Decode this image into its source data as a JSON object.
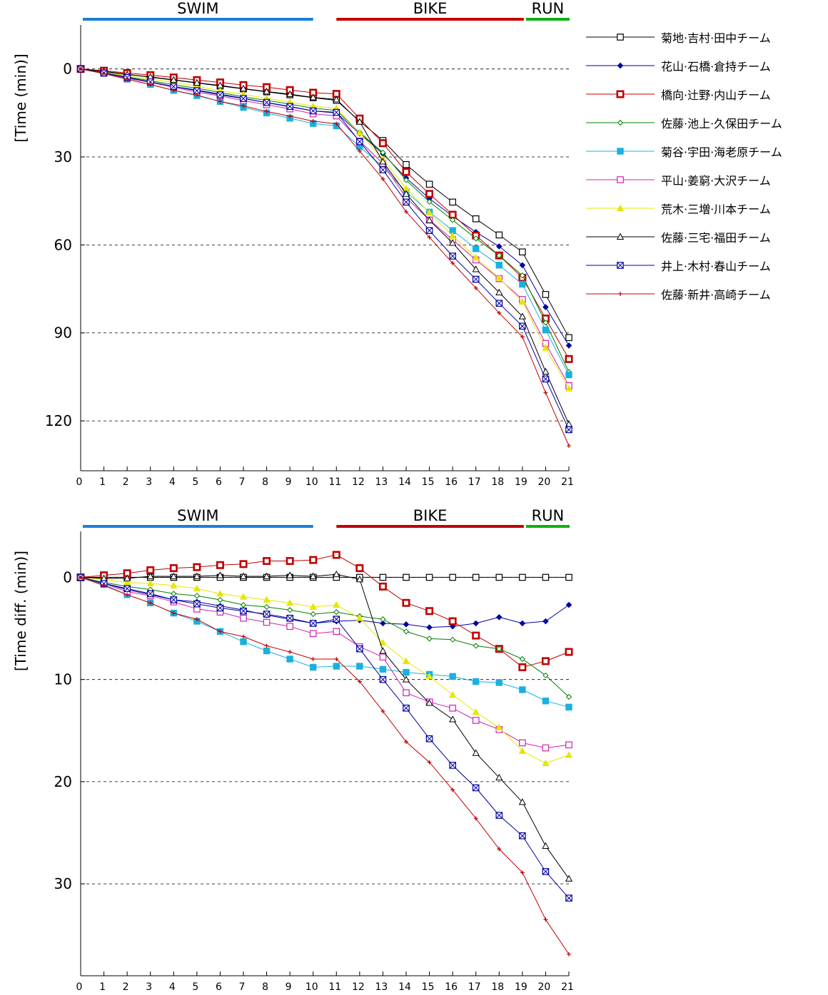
{
  "chart_data": [
    {
      "type": "line",
      "ylabel": "[Time (min)]",
      "y_inverted": true,
      "ylim": [
        -15,
        137
      ],
      "xlim": [
        0,
        21
      ],
      "x": [
        0,
        1,
        2,
        3,
        4,
        5,
        6,
        7,
        8,
        9,
        10,
        11,
        12,
        13,
        14,
        15,
        16,
        17,
        18,
        19,
        20,
        21
      ],
      "x_ticks": [
        "0",
        "1",
        "2",
        "3",
        "4",
        "5",
        "6",
        "7",
        "8",
        "9",
        "10",
        "11",
        "12",
        "13",
        "14",
        "15",
        "16",
        "17",
        "18",
        "19",
        "20",
        "21"
      ],
      "y_ticks": [
        {
          "value": 0,
          "label": "0"
        },
        {
          "value": 30,
          "label": "30"
        },
        {
          "value": 60,
          "label": "60"
        },
        {
          "value": 90,
          "label": "90"
        },
        {
          "value": 120,
          "label": "120"
        }
      ],
      "grid": "horizontal dashed",
      "phases": [
        {
          "label": "SWIM",
          "start": 0,
          "end": 10,
          "color": "#1a7fd6"
        },
        {
          "label": "BIKE",
          "start": 11,
          "end": 19,
          "color": "#c00000"
        },
        {
          "label": "RUN",
          "start": 19,
          "end": 21,
          "color": "#10b010"
        }
      ],
      "series_ref": "legend"
    },
    {
      "type": "line",
      "ylabel": "[Time diff. (min)]",
      "y_inverted": true,
      "ylim": [
        -4.5,
        39
      ],
      "xlim": [
        0,
        21
      ],
      "x": [
        0,
        1,
        2,
        3,
        4,
        5,
        6,
        7,
        8,
        9,
        10,
        11,
        12,
        13,
        14,
        15,
        16,
        17,
        18,
        19,
        20,
        21
      ],
      "x_ticks": [
        "0",
        "1",
        "2",
        "3",
        "4",
        "5",
        "6",
        "7",
        "8",
        "9",
        "10",
        "11",
        "12",
        "13",
        "14",
        "15",
        "16",
        "17",
        "18",
        "19",
        "20",
        "21"
      ],
      "y_ticks": [
        {
          "value": 0,
          "label": "0"
        },
        {
          "value": 10,
          "label": "10"
        },
        {
          "value": 20,
          "label": "20"
        },
        {
          "value": 30,
          "label": "30"
        }
      ],
      "grid": "horizontal dashed",
      "phases": [
        {
          "label": "SWIM",
          "start": 0,
          "end": 10,
          "color": "#1a7fd6"
        },
        {
          "label": "BIKE",
          "start": 11,
          "end": 19,
          "color": "#c00000"
        },
        {
          "label": "RUN",
          "start": 19,
          "end": 21,
          "color": "#10b010"
        }
      ],
      "series_ref": "legend"
    }
  ],
  "legend": {
    "placement": "right of top chart",
    "series": [
      {
        "name": "菊地·吉村·田中チーム",
        "color": "#000000",
        "marker": "open-square",
        "time": [
          0,
          0.8,
          1.8,
          2.8,
          3.8,
          4.8,
          5.8,
          6.8,
          7.8,
          8.8,
          9.8,
          10.7,
          17.8,
          24.4,
          32.6,
          39.3,
          45.4,
          51.1,
          56.6,
          62.4,
          76.9,
          91.6
        ]
      },
      {
        "name": "花山·石橋·倉持チーム",
        "color": "#0000a0",
        "marker": "diamond",
        "time": [
          0,
          1.4,
          3,
          4.5,
          6,
          7.2,
          8.6,
          10,
          11.5,
          12.9,
          14.3,
          15,
          22,
          28.9,
          37.2,
          44.2,
          50.2,
          55.6,
          60.5,
          66.9,
          81.2,
          94.3
        ]
      },
      {
        "name": "橋向·辻野·内山チーム",
        "color": "#c00000",
        "marker": "bold-square",
        "time": [
          0,
          0.6,
          1.4,
          2.1,
          2.9,
          3.8,
          4.6,
          5.5,
          6.2,
          7.2,
          8.1,
          8.5,
          16.9,
          25.3,
          35.1,
          42.6,
          49.7,
          56.8,
          63.6,
          71.2,
          85.1,
          98.9
        ]
      },
      {
        "name": "佐藤·池上·久保田チーム",
        "color": "#008000",
        "marker": "small-diamond",
        "time": [
          0,
          1.3,
          2.7,
          4,
          5.4,
          6.6,
          8,
          9.5,
          10.7,
          12,
          13.4,
          14.1,
          21.6,
          28.5,
          37.9,
          45.3,
          51.5,
          57.8,
          63.6,
          70.4,
          86.5,
          103.3
        ]
      },
      {
        "name": "菊谷·宇田·海老原チーム",
        "color": "#1ab0e0",
        "marker": "filled-square",
        "time": [
          0,
          1.5,
          3.5,
          5.3,
          7.3,
          9.1,
          11.1,
          13.1,
          15,
          16.8,
          18.6,
          19.4,
          26.5,
          33.4,
          41.9,
          48.8,
          55.1,
          61.3,
          66.9,
          73.4,
          89,
          104.3
        ]
      },
      {
        "name": "平山·姜窮·大沢チーム",
        "color": "#d020b0",
        "marker": "open-square",
        "time": [
          0,
          1.4,
          3.2,
          4.6,
          6.2,
          7.9,
          9.2,
          10.8,
          12.2,
          13.6,
          15.3,
          16,
          24.6,
          32.2,
          43.9,
          51.5,
          58.2,
          65.1,
          71.5,
          78.6,
          93.6,
          108
        ]
      },
      {
        "name": "荒木·三増·川本チーム",
        "color": "#e6e600",
        "marker": "filled-triangle",
        "time": [
          0,
          1,
          2.3,
          3.4,
          4.6,
          5.9,
          7.4,
          8.7,
          10,
          11.3,
          12.7,
          13.4,
          21.8,
          30.8,
          40.8,
          49,
          56.9,
          64.3,
          71.3,
          79.4,
          95.1,
          109
        ]
      },
      {
        "name": "佐藤·三宅·福田チーム",
        "color": "#000000",
        "marker": "open-triangle",
        "time": [
          0,
          0.9,
          1.9,
          2.7,
          3.7,
          4.7,
          5.6,
          6.7,
          7.7,
          8.6,
          9.7,
          10.4,
          18,
          31.6,
          42.6,
          51.6,
          59.3,
          68.3,
          76.2,
          84.4,
          103.2,
          121.1
        ]
      },
      {
        "name": "井上·木村·春山チーム",
        "color": "#0000a0",
        "marker": "crossed-square",
        "time": [
          0,
          1.4,
          2.9,
          4.4,
          6,
          7.4,
          8.8,
          10.1,
          11.4,
          12.8,
          14.3,
          14.8,
          24.8,
          34.4,
          45.4,
          55.1,
          63.8,
          71.7,
          79.9,
          87.7,
          105.7,
          123
        ]
      },
      {
        "name": "佐藤·新井·高崎チーム",
        "color": "#c00000",
        "marker": "plus",
        "time": [
          0,
          1.6,
          3.5,
          5.3,
          7.3,
          8.9,
          11.1,
          12.6,
          14.5,
          16.1,
          17.8,
          18.7,
          28,
          37.5,
          48.7,
          57.4,
          66.2,
          74.7,
          83.2,
          91.3,
          110.4,
          128.5
        ]
      }
    ]
  }
}
